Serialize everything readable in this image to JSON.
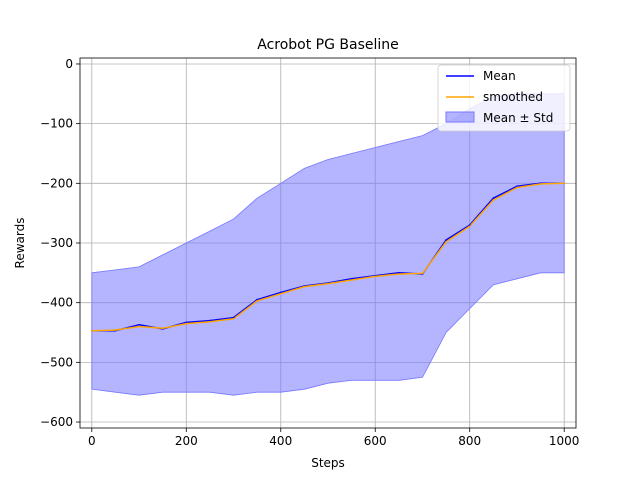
{
  "chart_data": {
    "type": "line",
    "title": "Acrobot PG Baseline",
    "xlabel": "Steps",
    "ylabel": "Rewards",
    "xlim": [
      -25,
      1025
    ],
    "ylim": [
      -610,
      10
    ],
    "xticks": [
      0,
      200,
      400,
      600,
      800,
      1000
    ],
    "yticks": [
      0,
      -100,
      -200,
      -300,
      -400,
      -500,
      -600
    ],
    "xtick_labels": [
      "0",
      "200",
      "400",
      "600",
      "800",
      "1000"
    ],
    "ytick_labels": [
      "0",
      "−100",
      "−200",
      "−300",
      "−400",
      "−500",
      "−600"
    ],
    "grid": true,
    "legend_position": "top-right",
    "colors": {
      "mean": "#0000ff",
      "smoothed": "#ffa500",
      "band": "#7777ff"
    },
    "series": [
      {
        "name": "Mean",
        "x": [
          0,
          50,
          100,
          150,
          200,
          250,
          300,
          350,
          400,
          450,
          500,
          550,
          600,
          650,
          700,
          750,
          800,
          850,
          900,
          950,
          1000
        ],
        "values": [
          -447,
          -447,
          -437,
          -444,
          -433,
          -430,
          -425,
          -395,
          -383,
          -372,
          -367,
          -360,
          -355,
          -350,
          -352,
          -295,
          -270,
          -225,
          -205,
          -200,
          -200
        ]
      },
      {
        "name": "smoothed",
        "x": [
          0,
          50,
          100,
          150,
          200,
          250,
          300,
          350,
          400,
          450,
          500,
          550,
          600,
          650,
          700,
          750,
          800,
          850,
          900,
          950,
          1000
        ],
        "values": [
          -447,
          -446,
          -440,
          -443,
          -435,
          -432,
          -427,
          -397,
          -385,
          -373,
          -368,
          -362,
          -356,
          -352,
          -351,
          -298,
          -272,
          -228,
          -207,
          -201,
          -200
        ]
      },
      {
        "name": "Mean ± Std",
        "x": [
          0,
          50,
          100,
          150,
          200,
          250,
          300,
          350,
          400,
          450,
          500,
          550,
          600,
          650,
          700,
          750,
          800,
          850,
          900,
          950,
          1000
        ],
        "upper": [
          -350,
          -345,
          -340,
          -320,
          -300,
          -280,
          -260,
          -225,
          -200,
          -175,
          -160,
          -150,
          -140,
          -130,
          -120,
          -100,
          -75,
          -55,
          -50,
          -50,
          -50
        ],
        "lower": [
          -545,
          -550,
          -555,
          -550,
          -550,
          -550,
          -555,
          -550,
          -550,
          -545,
          -535,
          -530,
          -530,
          -530,
          -525,
          -450,
          -410,
          -370,
          -360,
          -350,
          -350
        ]
      }
    ]
  }
}
